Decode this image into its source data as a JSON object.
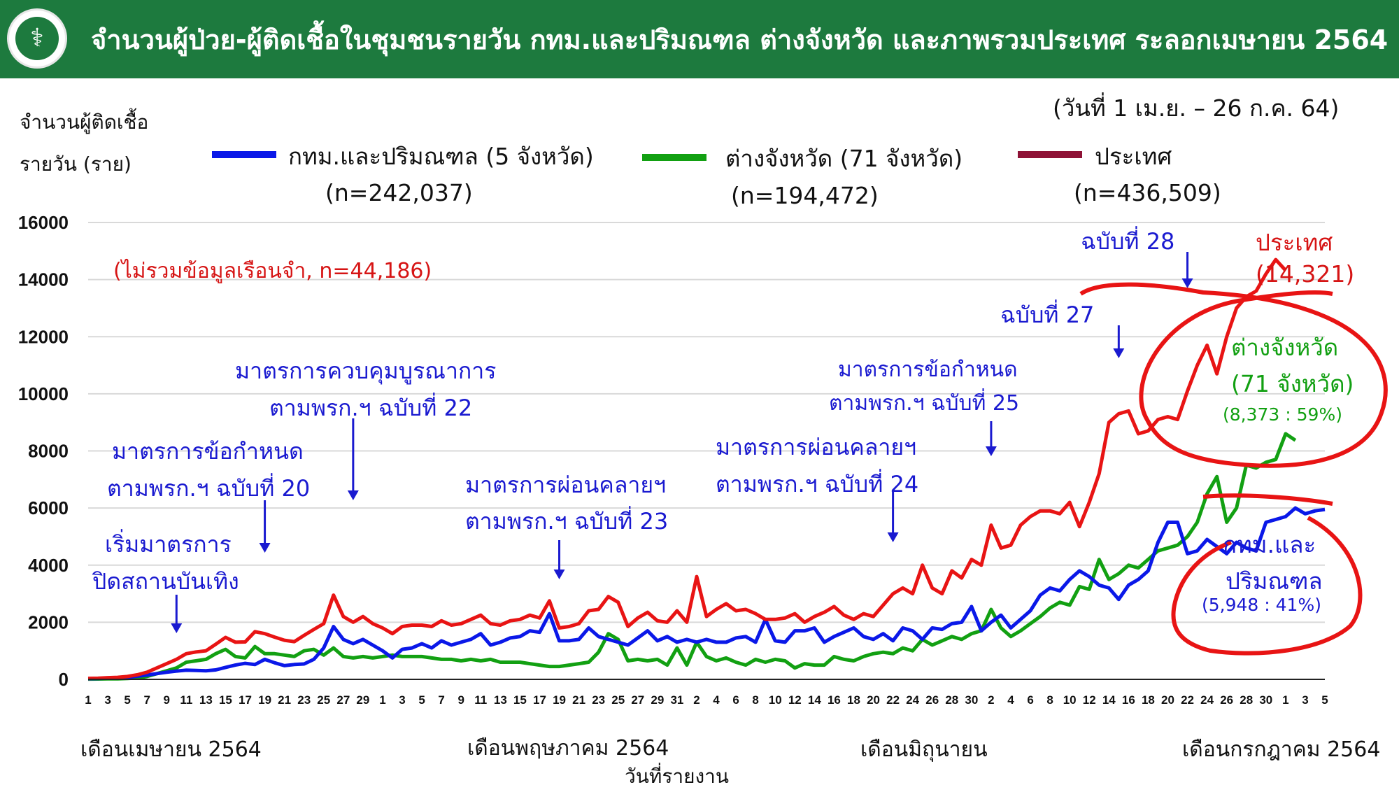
{
  "header": {
    "title": "จำนวนผู้ป่วย-ผู้ติดเชื้อในชุมชนรายวัน กทม.และปริมณฑล ต่างจังหวัด และภาพรวมประเทศ ระลอกเมษายน 2564"
  },
  "subtitle": "(วันที่ 1 เม.ย. – 26 ก.ค. 64)",
  "colors": {
    "header": "#1d7a3e",
    "bkk": "#0a18e8",
    "prov": "#12a012",
    "country": "#e81414",
    "legend_country": "#8e1236",
    "annotation_blue": "#1a1ad0",
    "annotation_red": "#d61414"
  },
  "chart_data": {
    "type": "line",
    "ylabel_line1": "จำนวนผู้ติดเชื้อ",
    "ylabel_line2": "รายวัน (ราย)",
    "xlabel": "วันที่รายงาน",
    "ylim": [
      0,
      16000
    ],
    "y_ticks": [
      "0",
      "2000",
      "4000",
      "6000",
      "8000",
      "10000",
      "12000",
      "14000",
      "16000"
    ],
    "x_tick_labels": [
      "1",
      "3",
      "5",
      "7",
      "9",
      "11",
      "13",
      "15",
      "17",
      "19",
      "21",
      "23",
      "25",
      "27",
      "29",
      "1",
      "3",
      "5",
      "7",
      "9",
      "11",
      "13",
      "15",
      "17",
      "19",
      "21",
      "23",
      "25",
      "27",
      "29",
      "31",
      "2",
      "4",
      "6",
      "8",
      "10",
      "12",
      "14",
      "16",
      "18",
      "20",
      "22",
      "24",
      "26",
      "28",
      "30",
      "2",
      "4",
      "6",
      "8",
      "10",
      "12",
      "14",
      "16",
      "18",
      "20",
      "22",
      "24",
      "26",
      "28",
      "30",
      "1",
      "3",
      "5"
    ],
    "month_labels": [
      "เดือนเมษายน 2564",
      "เดือนพฤษภาคม 2564",
      "เดือนมิถุนายน",
      "เดือนกรกฎาคม 2564"
    ],
    "x_start": "2021-04-01",
    "series": [
      {
        "name": "กทม.และปริมณฑล (5 จังหวัด)",
        "n_label": "(n=242,037)",
        "color": "#0a18e8",
        "values": [
          25,
          30,
          40,
          50,
          70,
          110,
          150,
          200,
          250,
          290,
          320,
          310,
          300,
          330,
          420,
          500,
          560,
          520,
          700,
          580,
          480,
          520,
          540,
          700,
          1100,
          1850,
          1400,
          1250,
          1400,
          1200,
          1000,
          750,
          1050,
          1100,
          1250,
          1100,
          1350,
          1200,
          1300,
          1400,
          1600,
          1200,
          1300,
          1450,
          1500,
          1700,
          1650,
          2300,
          1350,
          1350,
          1400,
          1800,
          1500,
          1400,
          1300,
          1200,
          1450,
          1700,
          1350,
          1500,
          1300,
          1400,
          1300,
          1400,
          1300,
          1300,
          1450,
          1500,
          1300,
          2100,
          1350,
          1300,
          1700,
          1700,
          1800,
          1300,
          1500,
          1650,
          1800,
          1500,
          1400,
          1600,
          1350,
          1800,
          1700,
          1400,
          1800,
          1750,
          1950,
          2000,
          2550,
          1700,
          2000,
          2250,
          1800,
          2100,
          2400,
          2950,
          3200,
          3100,
          3500,
          3800,
          3600,
          3300,
          3200,
          2800,
          3300,
          3500,
          3800,
          4800,
          5500,
          5500,
          4400,
          4500,
          4900,
          4650,
          4400,
          4800,
          4600,
          4500,
          5500,
          5600,
          5700,
          6000,
          5800,
          5900,
          5948
        ]
      },
      {
        "name": "ต่างจังหวัด (71 จังหวัด)",
        "n_label": "(n=194,472)",
        "color": "#12a012",
        "values": [
          10,
          12,
          20,
          20,
          30,
          50,
          100,
          200,
          300,
          400,
          600,
          650,
          700,
          900,
          1050,
          800,
          750,
          1150,
          900,
          900,
          850,
          800,
          1000,
          1050,
          850,
          1100,
          800,
          750,
          800,
          750,
          800,
          850,
          800,
          800,
          800,
          750,
          700,
          700,
          650,
          700,
          650,
          700,
          600,
          600,
          600,
          550,
          500,
          450,
          450,
          500,
          550,
          600,
          950,
          1600,
          1400,
          650,
          700,
          650,
          700,
          500,
          1100,
          500,
          1300,
          800,
          650,
          750,
          600,
          500,
          700,
          600,
          700,
          650,
          400,
          550,
          500,
          500,
          800,
          700,
          650,
          800,
          900,
          950,
          900,
          1100,
          1000,
          1400,
          1200,
          1350,
          1500,
          1400,
          1600,
          1700,
          2450,
          1800,
          1500,
          1700,
          1950,
          2200,
          2500,
          2700,
          2600,
          3250,
          3150,
          4200,
          3500,
          3700,
          4000,
          3900,
          4200,
          4500,
          4600,
          4700,
          5000,
          5500,
          6500,
          7100,
          5500,
          6000,
          7500,
          7400,
          7600,
          7700,
          8600,
          8373
        ]
      },
      {
        "name": "ประเทศ",
        "n_label": "(n=436,509)",
        "color": "#e81414",
        "values": [
          35,
          40,
          60,
          70,
          100,
          160,
          250,
          400,
          550,
          700,
          900,
          960,
          1000,
          1230,
          1470,
          1300,
          1310,
          1670,
          1600,
          1480,
          1370,
          1320,
          1540,
          1750,
          1950,
          2950,
          2200,
          2000,
          2200,
          1950,
          1800,
          1600,
          1850,
          1900,
          1900,
          1850,
          2050,
          1900,
          1950,
          2100,
          2250,
          1950,
          1900,
          2050,
          2100,
          2250,
          2150,
          2750,
          1800,
          1850,
          1950,
          2400,
          2450,
          2900,
          2700,
          1850,
          2150,
          2350,
          2050,
          2000,
          2400,
          2000,
          3600,
          2200,
          2450,
          2650,
          2400,
          2450,
          2300,
          2100,
          2100,
          2150,
          2300,
          2000,
          2200,
          2350,
          2550,
          2250,
          2100,
          2300,
          2200,
          2600,
          3000,
          3200,
          3000,
          4000,
          3200,
          3000,
          3800,
          3550,
          4200,
          4000,
          5400,
          4600,
          4700,
          5400,
          5700,
          5900,
          5900,
          5800,
          6200,
          5350,
          6200,
          7200,
          9000,
          9300,
          9400,
          8600,
          8700,
          9100,
          9200,
          9100,
          10100,
          11000,
          11700,
          10700,
          12000,
          13000,
          13400,
          13600,
          14200,
          14700,
          14321
        ]
      }
    ]
  },
  "annotations": {
    "excluded_prison": "(ไม่รวมข้อมูลเรือนจำ, n=44,186)",
    "m22_l1": "มาตรการควบคุมบูรณาการ",
    "m22_l2": "ตามพรก.ฯ ฉบับที่ 22",
    "m20_l1": "มาตรการข้อกำหนด",
    "m20_l2": "ตามพรก.ฯ ฉบับที่ 20",
    "start_l1": "เริ่มมาตรการ",
    "start_l2": "ปิดสถานบันเทิง",
    "m23_l1": "มาตรการผ่อนคลายฯ",
    "m23_l2": "ตามพรก.ฯ ฉบับที่ 23",
    "m24_l1": "มาตรการผ่อนคลายฯ",
    "m24_l2": "ตามพรก.ฯ ฉบับที่ 24",
    "m25_l1": "มาตรการข้อกำหนด",
    "m25_l2": "ตามพรก.ฯ ฉบับที่ 25",
    "m27": "ฉบับที่ 27",
    "m28": "ฉบับที่ 28",
    "country_label": "ประเทศ",
    "country_value": "(14,321)",
    "prov_label_l1": "ต่างจังหวัด",
    "prov_label_l2": "(71 จังหวัด)",
    "prov_value": "(8,373 : 59%)",
    "bkk_label_l1": "กทม.และ",
    "bkk_label_l2": "ปริมณฑล",
    "bkk_value": "(5,948 : 41%)"
  }
}
